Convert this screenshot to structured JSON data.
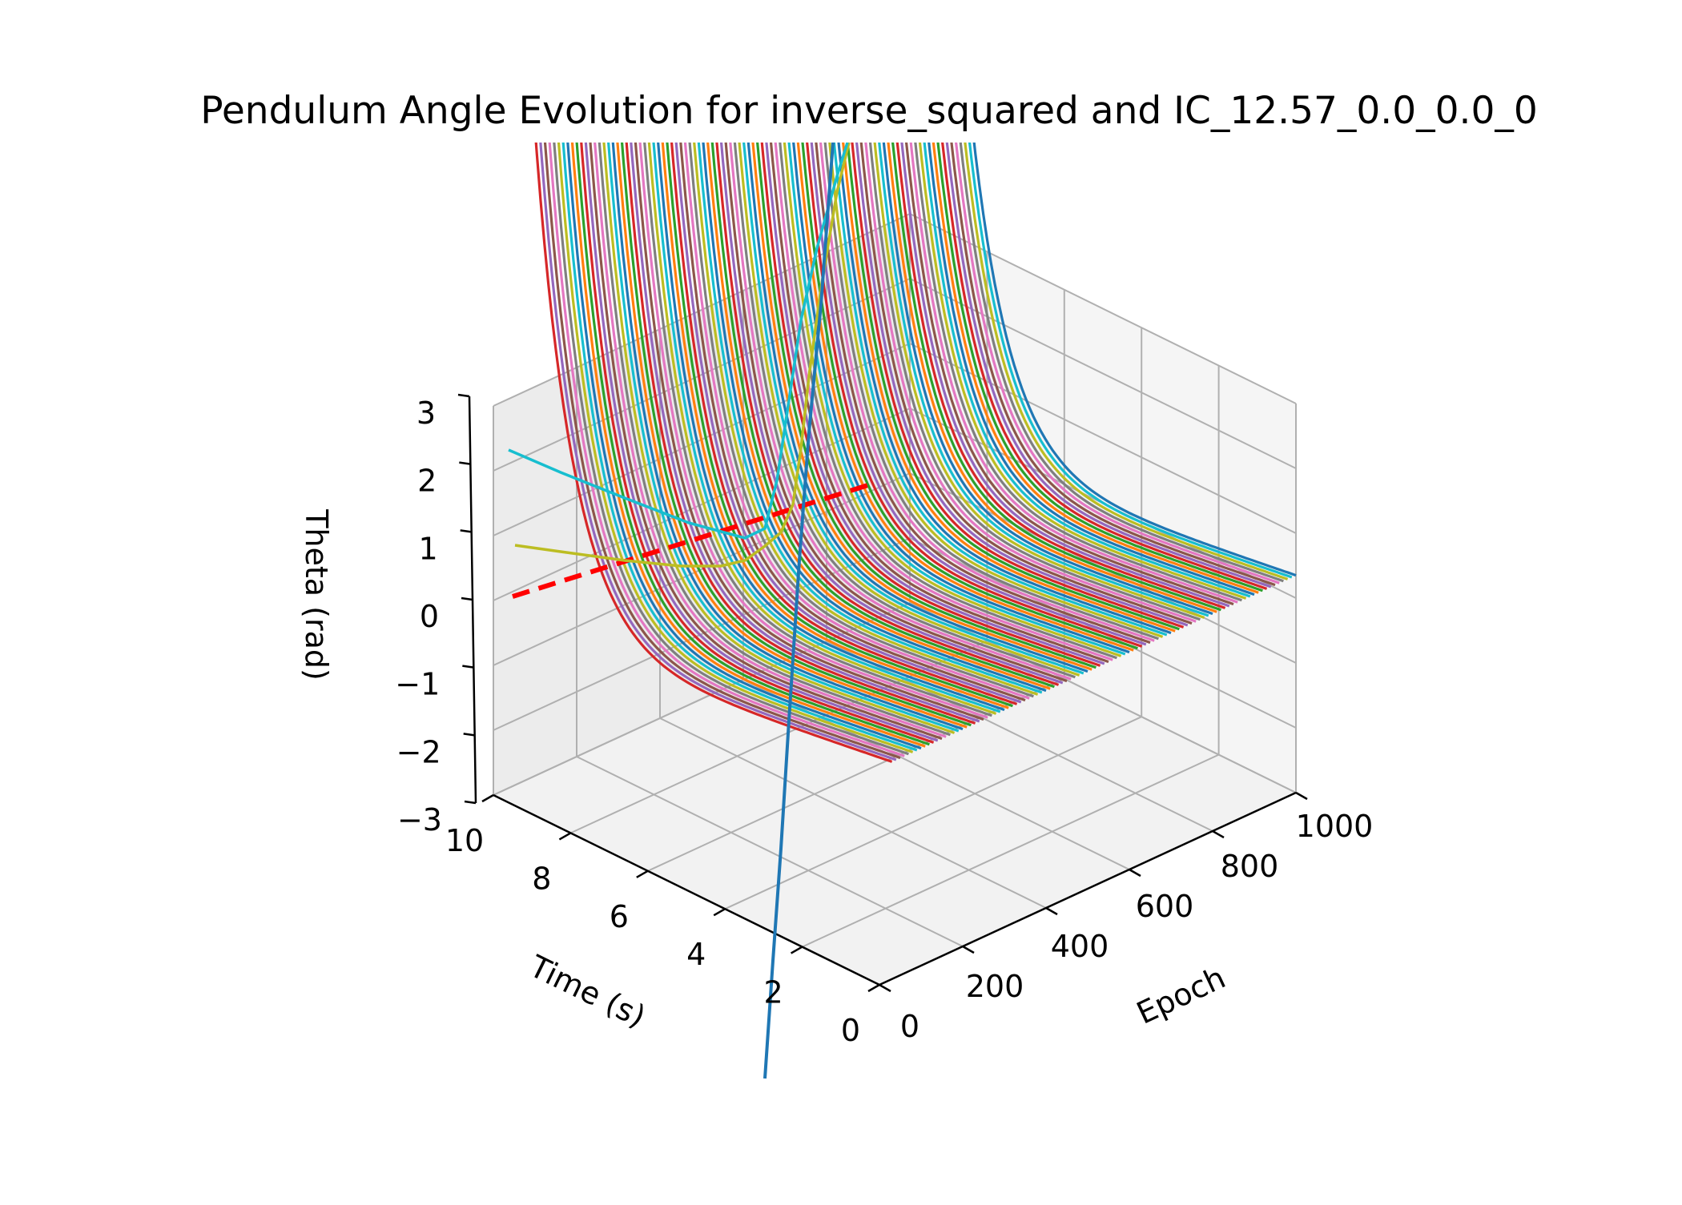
{
  "chart_data": {
    "type": "line",
    "projection": "3d",
    "title": "Pendulum Angle Evolution for inverse_squared and IC_12.57_0.0_0.0_0",
    "xlabel": "Epoch",
    "ylabel": "Time (s)",
    "zlabel": "Theta (rad)",
    "xlim": [
      0,
      1000
    ],
    "ylim": [
      0,
      10
    ],
    "zlim": [
      -3,
      3
    ],
    "x_ticks": [
      "0",
      "200",
      "400",
      "600",
      "800",
      "1000"
    ],
    "y_ticks": [
      "0",
      "2",
      "4",
      "6",
      "8",
      "10"
    ],
    "z_ticks": [
      "−3",
      "−2",
      "−1",
      "0",
      "1",
      "2",
      "3"
    ],
    "grid": true,
    "palette": [
      "#1f77b4",
      "#ff7f0e",
      "#2ca02c",
      "#d62728",
      "#9467bd",
      "#8c564b",
      "#e377c2",
      "#7f7f7f",
      "#bcbd22",
      "#17becf"
    ],
    "epoch_start": 0,
    "epoch_end": 1000,
    "epoch_step": 10,
    "series_model": "theta(t) approx 0.35 - 0.09*t at t=0 rising to steep growth; early epochs (0-40) diverge at small t",
    "reference_line": {
      "style": "dashed",
      "color": "#ff0000",
      "time": 10,
      "theta": 0.44,
      "epoch_range": [
        0,
        1000
      ]
    },
    "highlight_series": [
      {
        "epoch": 0,
        "color": "#1f77b4",
        "theta_at_t0": "below -3",
        "theta_at_t10": "above 3",
        "note": "nearly vertical line"
      },
      {
        "epoch": 10,
        "color": "#17becf",
        "theta_at_t10": 2.3
      },
      {
        "epoch": 20,
        "color": "#bcbd22",
        "theta_at_t10": 1.1
      }
    ]
  }
}
